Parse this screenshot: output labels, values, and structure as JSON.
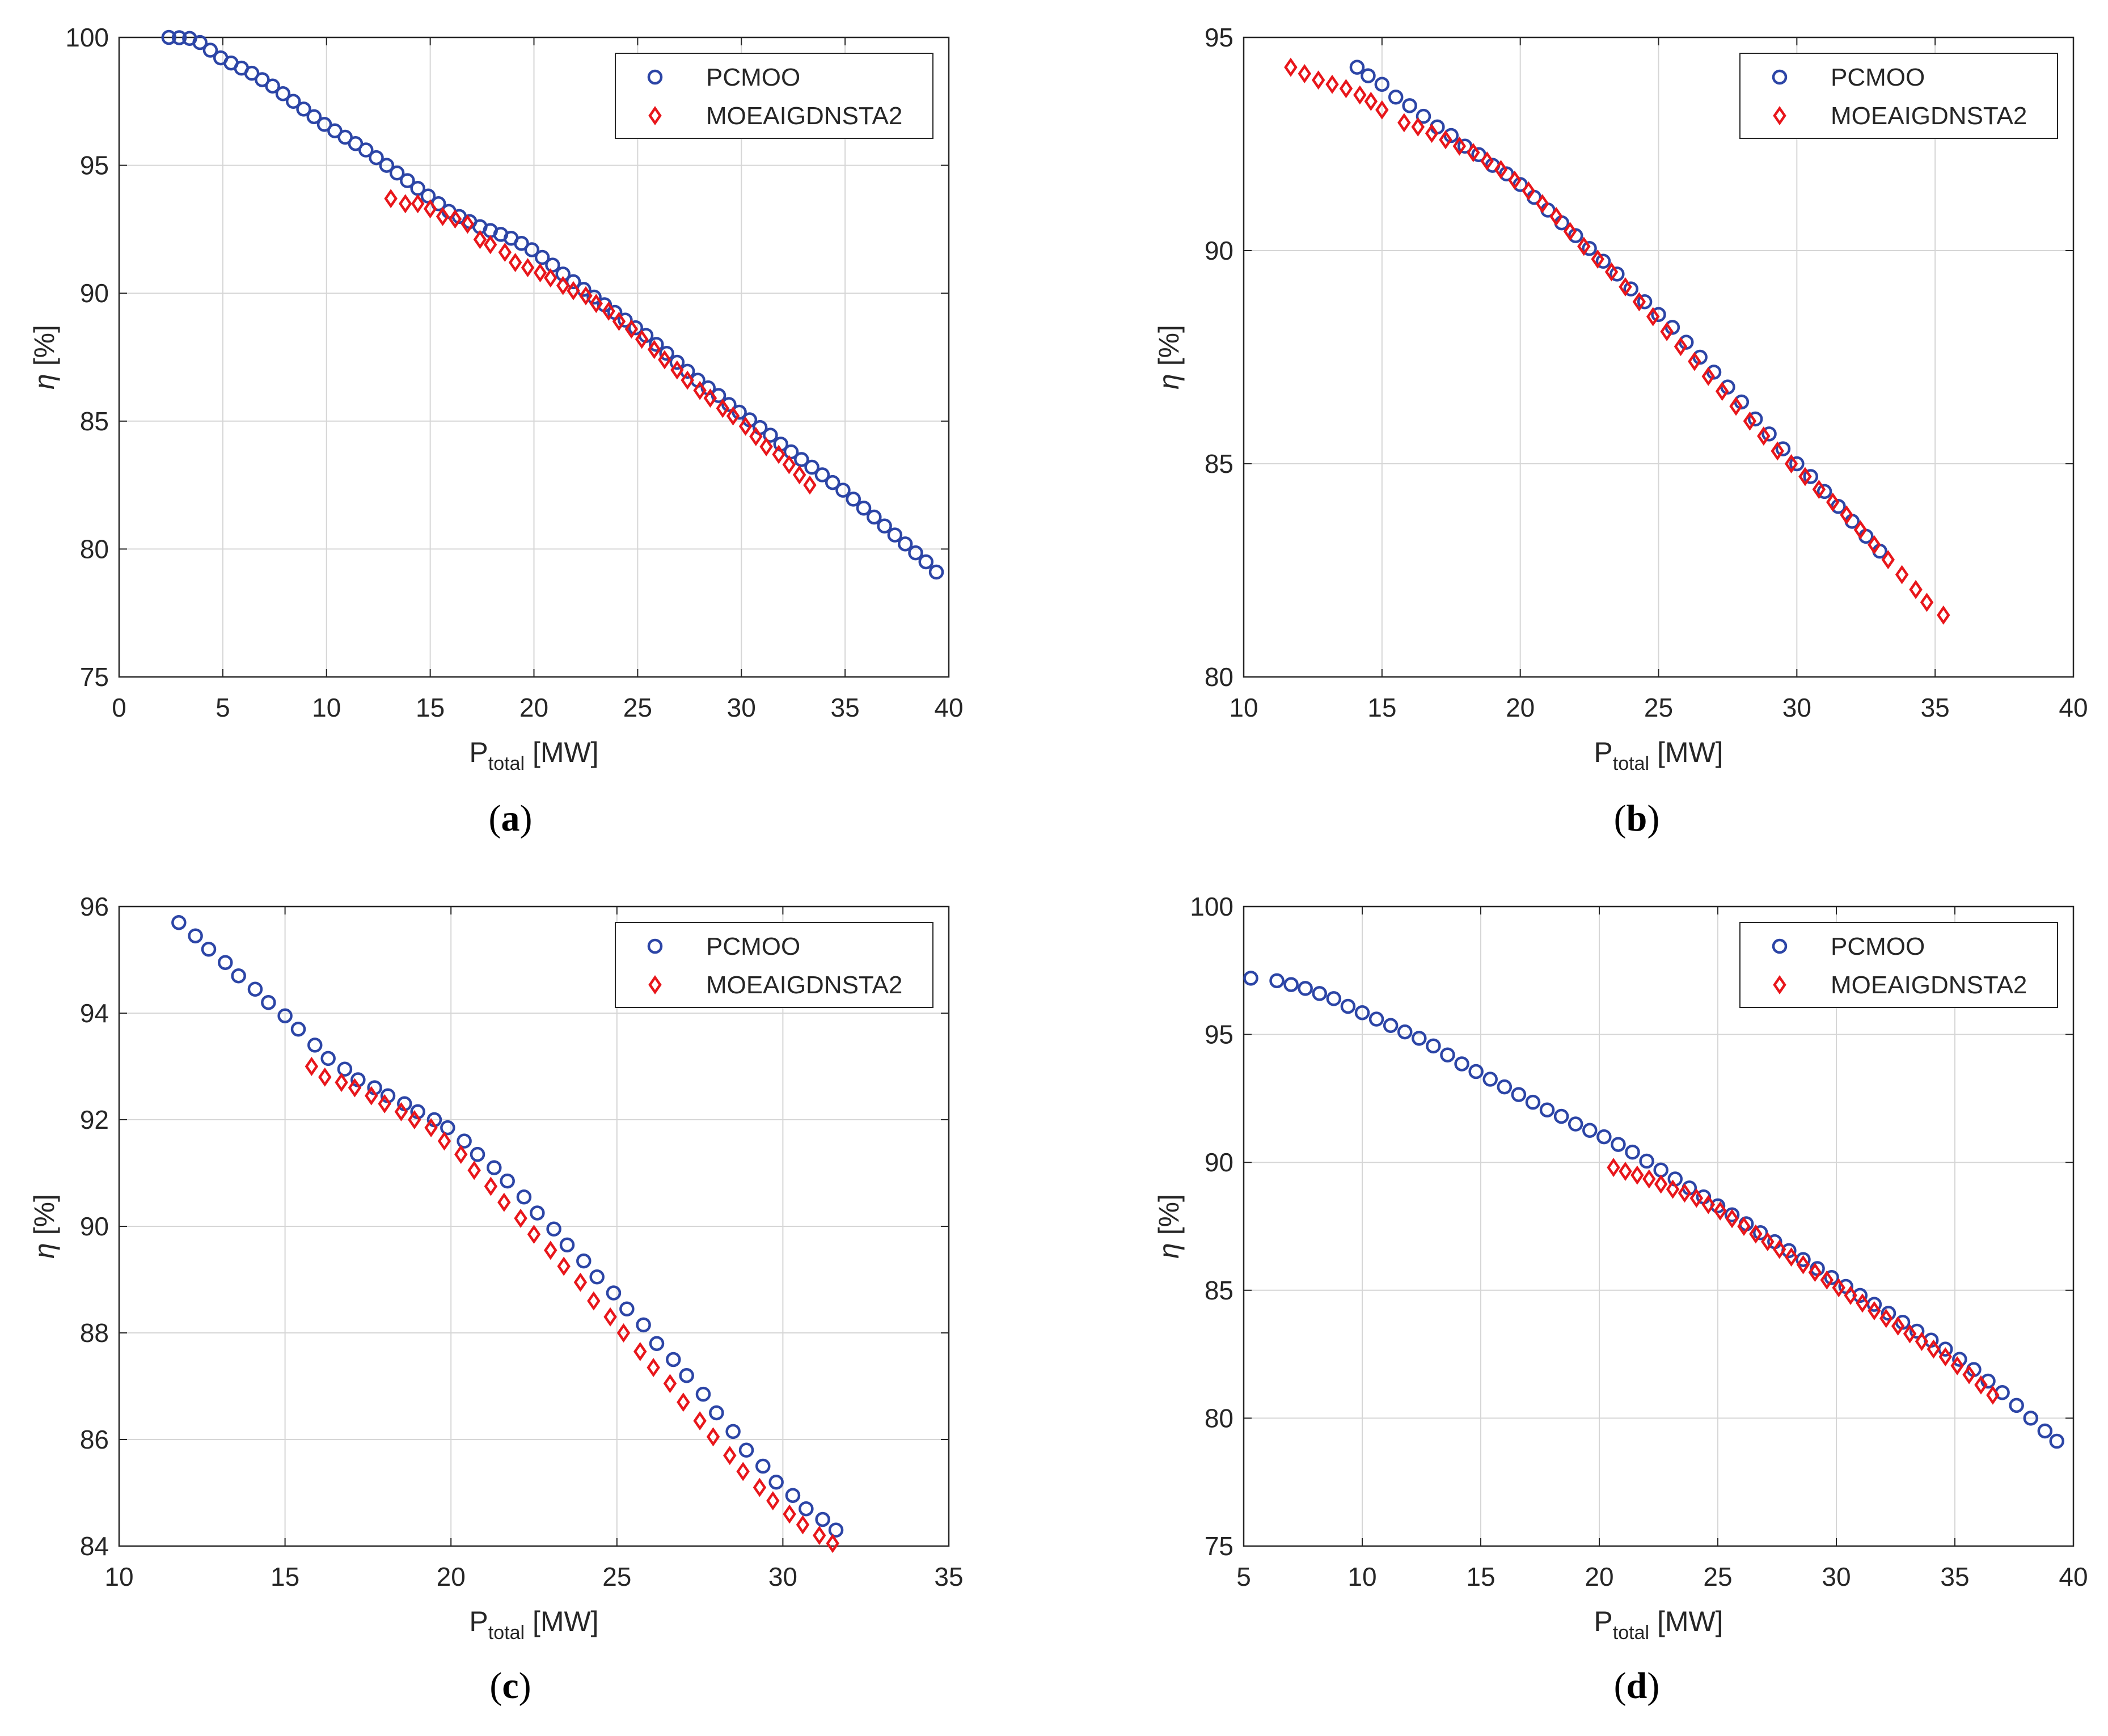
{
  "colors": {
    "series_0": "#2c45a6",
    "series_1": "#e8161b",
    "grid": "#d6d6d6",
    "axis": "#262626"
  },
  "chart_data": [
    {
      "type": "scatter",
      "caption": "a",
      "xlabel": {
        "main": "P",
        "sub": "total",
        "unit": "[MW]"
      },
      "ylabel": {
        "symbol": "η",
        "unit": "[%]"
      },
      "xlim": [
        0,
        40
      ],
      "ylim": [
        75,
        100
      ],
      "xticks": [
        0,
        5,
        10,
        15,
        20,
        25,
        30,
        35,
        40
      ],
      "yticks": [
        75,
        80,
        85,
        90,
        95,
        100
      ],
      "grid": true,
      "legend_position": "top-right",
      "series": [
        {
          "name": "PCMOO",
          "marker": "circle",
          "x": [
            2.4,
            2.9,
            3.4,
            3.9,
            4.4,
            4.9,
            5.4,
            5.9,
            6.4,
            6.9,
            7.4,
            7.9,
            8.4,
            8.9,
            9.4,
            9.9,
            10.4,
            10.9,
            11.4,
            11.9,
            12.4,
            12.9,
            13.4,
            13.9,
            14.4,
            14.9,
            15.4,
            15.9,
            16.4,
            16.9,
            17.4,
            17.9,
            18.4,
            18.9,
            19.4,
            19.9,
            20.4,
            20.9,
            21.4,
            21.9,
            22.4,
            22.9,
            23.4,
            23.9,
            24.4,
            24.9,
            25.4,
            25.9,
            26.4,
            26.9,
            27.4,
            27.9,
            28.4,
            28.9,
            29.4,
            29.9,
            30.4,
            30.9,
            31.4,
            31.9,
            32.4,
            32.9,
            33.4,
            33.9,
            34.4,
            34.9,
            35.4,
            35.9,
            36.4,
            36.9,
            37.4,
            37.9,
            38.4,
            38.9,
            39.4
          ],
          "y": [
            100.0,
            99.99,
            99.96,
            99.8,
            99.5,
            99.2,
            99.0,
            98.8,
            98.6,
            98.35,
            98.1,
            97.8,
            97.5,
            97.2,
            96.9,
            96.6,
            96.35,
            96.1,
            95.85,
            95.6,
            95.3,
            95.0,
            94.7,
            94.4,
            94.1,
            93.8,
            93.5,
            93.2,
            93.0,
            92.8,
            92.6,
            92.45,
            92.3,
            92.15,
            91.95,
            91.7,
            91.4,
            91.1,
            90.75,
            90.45,
            90.15,
            89.85,
            89.55,
            89.25,
            88.95,
            88.65,
            88.35,
            88.0,
            87.65,
            87.3,
            86.95,
            86.6,
            86.3,
            86.0,
            85.65,
            85.35,
            85.05,
            84.75,
            84.45,
            84.1,
            83.8,
            83.5,
            83.2,
            82.9,
            82.6,
            82.3,
            81.95,
            81.6,
            81.25,
            80.9,
            80.55,
            80.2,
            79.85,
            79.5,
            79.1
          ]
        },
        {
          "name": "MOEAIGDNSTA2",
          "marker": "diamond",
          "x": [
            13.1,
            13.8,
            14.4,
            15.0,
            15.6,
            16.2,
            16.8,
            17.4,
            17.9,
            18.6,
            19.1,
            19.7,
            20.3,
            20.8,
            21.4,
            21.9,
            22.5,
            23.0,
            23.6,
            24.1,
            24.7,
            25.2,
            25.8,
            26.3,
            26.9,
            27.4,
            28.0,
            28.5,
            29.1,
            29.6,
            30.2,
            30.7,
            31.2,
            31.8,
            32.3,
            32.8,
            33.3
          ],
          "y": [
            93.7,
            93.5,
            93.5,
            93.3,
            93.0,
            92.9,
            92.7,
            92.1,
            91.9,
            91.6,
            91.2,
            91.0,
            90.8,
            90.6,
            90.3,
            90.1,
            89.9,
            89.6,
            89.3,
            88.9,
            88.6,
            88.2,
            87.8,
            87.4,
            87.0,
            86.6,
            86.2,
            85.9,
            85.5,
            85.2,
            84.8,
            84.4,
            84.0,
            83.7,
            83.3,
            82.9,
            82.5
          ]
        }
      ]
    },
    {
      "type": "scatter",
      "caption": "b",
      "xlabel": {
        "main": "P",
        "sub": "total",
        "unit": "[MW]"
      },
      "ylabel": {
        "symbol": "η",
        "unit": "[%]"
      },
      "xlim": [
        10,
        40
      ],
      "ylim": [
        80,
        95
      ],
      "xticks": [
        10,
        15,
        20,
        25,
        30,
        35,
        40
      ],
      "yticks": [
        80,
        85,
        90,
        95
      ],
      "grid": true,
      "legend_position": "top-right",
      "series": [
        {
          "name": "PCMOO",
          "marker": "circle",
          "x": [
            14.1,
            14.5,
            15.0,
            15.5,
            16.0,
            16.5,
            17.0,
            17.5,
            18.0,
            18.5,
            19.0,
            19.5,
            20.0,
            20.5,
            21.0,
            21.5,
            22.0,
            22.5,
            23.0,
            23.5,
            24.0,
            24.5,
            25.0,
            25.5,
            26.0,
            26.5,
            27.0,
            27.5,
            28.0,
            28.5,
            29.0,
            29.5,
            30.0,
            30.5,
            31.0,
            31.5,
            32.0,
            32.5,
            33.0
          ],
          "y": [
            94.3,
            94.1,
            93.9,
            93.6,
            93.4,
            93.15,
            92.9,
            92.7,
            92.45,
            92.25,
            92.0,
            91.8,
            91.55,
            91.25,
            90.95,
            90.65,
            90.35,
            90.05,
            89.75,
            89.45,
            89.1,
            88.8,
            88.5,
            88.2,
            87.85,
            87.5,
            87.15,
            86.8,
            86.45,
            86.05,
            85.7,
            85.35,
            85.0,
            84.7,
            84.35,
            84.0,
            83.65,
            83.3,
            82.95
          ]
        },
        {
          "name": "MOEAIGDNSTA2",
          "marker": "diamond",
          "x": [
            11.7,
            12.2,
            12.7,
            13.2,
            13.7,
            14.2,
            14.6,
            15.0,
            15.8,
            16.3,
            16.8,
            17.3,
            17.8,
            18.3,
            18.8,
            19.3,
            19.8,
            20.3,
            20.8,
            21.3,
            21.8,
            22.3,
            22.8,
            23.3,
            23.8,
            24.3,
            24.8,
            25.3,
            25.8,
            26.3,
            26.8,
            27.3,
            27.8,
            28.3,
            28.8,
            29.3,
            29.8,
            30.3,
            30.8,
            31.3,
            31.8,
            32.3,
            32.8,
            33.3,
            33.8,
            34.3,
            34.7,
            35.3
          ],
          "y": [
            94.3,
            94.15,
            94.0,
            93.9,
            93.8,
            93.65,
            93.5,
            93.3,
            93.0,
            92.9,
            92.75,
            92.6,
            92.45,
            92.3,
            92.1,
            91.9,
            91.65,
            91.4,
            91.1,
            90.8,
            90.45,
            90.1,
            89.8,
            89.5,
            89.15,
            88.8,
            88.45,
            88.1,
            87.75,
            87.4,
            87.05,
            86.7,
            86.35,
            86.0,
            85.65,
            85.3,
            85.0,
            84.7,
            84.4,
            84.1,
            83.8,
            83.45,
            83.1,
            82.75,
            82.4,
            82.05,
            81.75,
            81.45
          ]
        }
      ]
    },
    {
      "type": "scatter",
      "caption": "c",
      "xlabel": {
        "main": "P",
        "sub": "total",
        "unit": "[MW]"
      },
      "ylabel": {
        "symbol": "η",
        "unit": "[%]"
      },
      "xlim": [
        10,
        35
      ],
      "ylim": [
        84,
        96
      ],
      "xticks": [
        10,
        15,
        20,
        25,
        30,
        35
      ],
      "yticks": [
        84,
        86,
        88,
        90,
        92,
        94,
        96
      ],
      "grid": true,
      "legend_position": "top-right",
      "series": [
        {
          "name": "PCMOO",
          "marker": "circle",
          "x": [
            11.8,
            12.3,
            12.7,
            13.2,
            13.6,
            14.1,
            14.5,
            15.0,
            15.4,
            15.9,
            16.3,
            16.8,
            17.2,
            17.7,
            18.1,
            18.6,
            19.0,
            19.5,
            19.9,
            20.4,
            20.8,
            21.3,
            21.7,
            22.2,
            22.6,
            23.1,
            23.5,
            24.0,
            24.4,
            24.9,
            25.3,
            25.8,
            26.2,
            26.7,
            27.1,
            27.6,
            28.0,
            28.5,
            28.9,
            29.4,
            29.8,
            30.3,
            30.7,
            31.2,
            31.6
          ],
          "y": [
            95.7,
            95.45,
            95.2,
            94.95,
            94.7,
            94.45,
            94.2,
            93.95,
            93.7,
            93.4,
            93.15,
            92.95,
            92.75,
            92.6,
            92.45,
            92.3,
            92.15,
            92.0,
            91.85,
            91.6,
            91.35,
            91.1,
            90.85,
            90.55,
            90.25,
            89.95,
            89.65,
            89.35,
            89.05,
            88.75,
            88.45,
            88.15,
            87.8,
            87.5,
            87.2,
            86.85,
            86.5,
            86.15,
            85.8,
            85.5,
            85.2,
            84.95,
            84.7,
            84.5,
            84.3
          ]
        },
        {
          "name": "MOEAIGDNSTA2",
          "marker": "diamond",
          "x": [
            15.8,
            16.2,
            16.7,
            17.1,
            17.6,
            18.0,
            18.5,
            18.9,
            19.4,
            19.8,
            20.3,
            20.7,
            21.2,
            21.6,
            22.1,
            22.5,
            23.0,
            23.4,
            23.9,
            24.3,
            24.8,
            25.2,
            25.7,
            26.1,
            26.6,
            27.0,
            27.5,
            27.9,
            28.4,
            28.8,
            29.3,
            29.7,
            30.2,
            30.6,
            31.1,
            31.5
          ],
          "y": [
            93.0,
            92.8,
            92.7,
            92.6,
            92.45,
            92.3,
            92.15,
            92.0,
            91.85,
            91.6,
            91.35,
            91.05,
            90.75,
            90.45,
            90.15,
            89.85,
            89.55,
            89.25,
            88.95,
            88.6,
            88.3,
            88.0,
            87.65,
            87.35,
            87.05,
            86.7,
            86.35,
            86.05,
            85.7,
            85.4,
            85.1,
            84.85,
            84.6,
            84.4,
            84.2,
            84.05
          ]
        }
      ]
    },
    {
      "type": "scatter",
      "caption": "d",
      "xlabel": {
        "main": "P",
        "sub": "total",
        "unit": "[MW]"
      },
      "ylabel": {
        "symbol": "η",
        "unit": "[%]"
      },
      "xlim": [
        5,
        40
      ],
      "ylim": [
        75,
        100
      ],
      "xticks": [
        5,
        10,
        15,
        20,
        25,
        30,
        35,
        40
      ],
      "yticks": [
        75,
        80,
        85,
        90,
        95,
        100
      ],
      "grid": true,
      "legend_position": "top-right",
      "series": [
        {
          "name": "PCMOO",
          "marker": "circle",
          "x": [
            5.3,
            6.4,
            7.0,
            7.6,
            8.2,
            8.8,
            9.4,
            10.0,
            10.6,
            11.2,
            11.8,
            12.4,
            13.0,
            13.6,
            14.2,
            14.8,
            15.4,
            16.0,
            16.6,
            17.2,
            17.8,
            18.4,
            19.0,
            19.6,
            20.2,
            20.8,
            21.4,
            22.0,
            22.6,
            23.2,
            23.8,
            24.4,
            25.0,
            25.6,
            26.2,
            26.8,
            27.4,
            28.0,
            28.6,
            29.2,
            29.8,
            30.4,
            31.0,
            31.6,
            32.2,
            32.8,
            33.4,
            34.0,
            34.6,
            35.2,
            35.8,
            36.4,
            37.0,
            37.6,
            38.2,
            38.8,
            39.3
          ],
          "y": [
            97.2,
            97.1,
            96.95,
            96.8,
            96.6,
            96.4,
            96.1,
            95.85,
            95.6,
            95.35,
            95.1,
            94.85,
            94.55,
            94.2,
            93.85,
            93.55,
            93.25,
            92.95,
            92.65,
            92.35,
            92.05,
            91.8,
            91.5,
            91.25,
            91.0,
            90.7,
            90.4,
            90.05,
            89.7,
            89.35,
            89.0,
            88.65,
            88.3,
            87.95,
            87.6,
            87.25,
            86.9,
            86.55,
            86.2,
            85.85,
            85.5,
            85.15,
            84.8,
            84.45,
            84.1,
            83.75,
            83.4,
            83.05,
            82.7,
            82.3,
            81.9,
            81.45,
            81.0,
            80.5,
            80.0,
            79.5,
            79.1
          ]
        },
        {
          "name": "MOEAIGDNSTA2",
          "marker": "diamond",
          "x": [
            20.6,
            21.1,
            21.6,
            22.1,
            22.6,
            23.1,
            23.6,
            24.1,
            24.6,
            25.1,
            25.6,
            26.1,
            26.6,
            27.1,
            27.6,
            28.1,
            28.6,
            29.1,
            29.6,
            30.1,
            30.6,
            31.1,
            31.6,
            32.1,
            32.6,
            33.1,
            33.6,
            34.1,
            34.6,
            35.1,
            35.6,
            36.1,
            36.6
          ],
          "y": [
            89.8,
            89.65,
            89.5,
            89.35,
            89.15,
            88.95,
            88.8,
            88.6,
            88.35,
            88.1,
            87.8,
            87.5,
            87.2,
            86.9,
            86.6,
            86.3,
            86.0,
            85.7,
            85.4,
            85.1,
            84.8,
            84.5,
            84.2,
            83.9,
            83.6,
            83.3,
            83.0,
            82.7,
            82.4,
            82.05,
            81.7,
            81.3,
            80.9
          ]
        }
      ]
    }
  ]
}
